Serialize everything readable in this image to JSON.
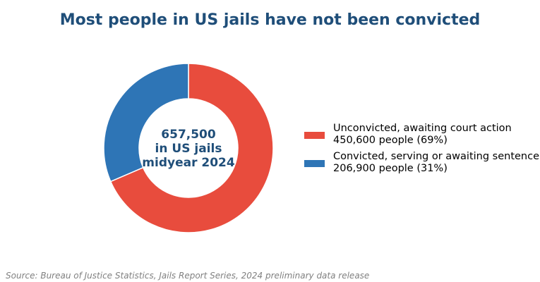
{
  "chart_data": {
    "type": "pie",
    "title": "Most people in US jails have not been convicted",
    "center_label": [
      "657,500",
      "in US jails",
      "midyear 2024"
    ],
    "slices": [
      {
        "label": "Unconvicted, awaiting court action",
        "detail": "450,600 people (69%)",
        "value": 450600,
        "percent": 69,
        "color": "#e84c3d"
      },
      {
        "label": "Convicted, serving or awaiting sentence",
        "detail": "206,900 people (31%)",
        "value": 206900,
        "percent": 31,
        "color": "#2e75b6"
      }
    ],
    "legend_position": "right",
    "donut": true
  },
  "source": "Source: Bureau of Justice Statistics, Jails Report Series, 2024 preliminary data release",
  "colors": {
    "title": "#1f4e79",
    "center_text": "#1f4e79",
    "source": "#808080"
  }
}
